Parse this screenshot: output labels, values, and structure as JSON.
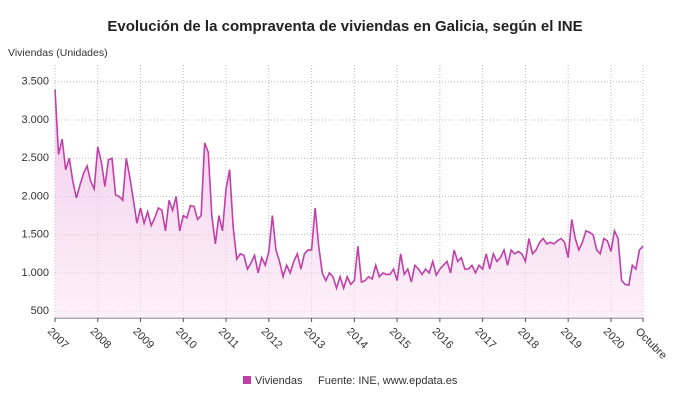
{
  "chart_data": {
    "type": "line",
    "title": "Evolución de la compraventa de viviendas en Galicia, según el INE",
    "y_label": "Viviendas (Unidades)",
    "source": "Fuente: INE, www.epdata.es",
    "categories": [
      "2007",
      null,
      null,
      null,
      null,
      null,
      null,
      null,
      null,
      null,
      null,
      null,
      "2008",
      null,
      null,
      null,
      null,
      null,
      null,
      null,
      null,
      null,
      null,
      null,
      "2009",
      null,
      null,
      null,
      null,
      null,
      null,
      null,
      null,
      null,
      null,
      null,
      "2010",
      null,
      null,
      null,
      null,
      null,
      null,
      null,
      null,
      null,
      null,
      null,
      "2011",
      null,
      null,
      null,
      null,
      null,
      null,
      null,
      null,
      null,
      null,
      null,
      "2012",
      null,
      null,
      null,
      null,
      null,
      null,
      null,
      null,
      null,
      null,
      null,
      "2013",
      null,
      null,
      null,
      null,
      null,
      null,
      null,
      null,
      null,
      null,
      null,
      "2014",
      null,
      null,
      null,
      null,
      null,
      null,
      null,
      null,
      null,
      null,
      null,
      "2015",
      null,
      null,
      null,
      null,
      null,
      null,
      null,
      null,
      null,
      null,
      null,
      "2016",
      null,
      null,
      null,
      null,
      null,
      null,
      null,
      null,
      null,
      null,
      null,
      "2017",
      null,
      null,
      null,
      null,
      null,
      null,
      null,
      null,
      null,
      null,
      null,
      "2018",
      null,
      null,
      null,
      null,
      null,
      null,
      null,
      null,
      null,
      null,
      null,
      "2019",
      null,
      null,
      null,
      null,
      null,
      null,
      null,
      null,
      null,
      null,
      null,
      "2020",
      null,
      null,
      null,
      null,
      null,
      null,
      null,
      null,
      "Octubre"
    ],
    "series": [
      {
        "name": "Viviendas",
        "color": "#c040a8",
        "values": [
          3400,
          2550,
          2750,
          2350,
          2500,
          2200,
          1980,
          2150,
          2300,
          2400,
          2200,
          2100,
          2650,
          2450,
          2130,
          2480,
          2500,
          2020,
          2000,
          1950,
          2500,
          2250,
          1950,
          1650,
          1850,
          1650,
          1800,
          1620,
          1720,
          1850,
          1820,
          1550,
          1950,
          1820,
          2000,
          1550,
          1750,
          1720,
          1880,
          1870,
          1700,
          1750,
          2700,
          2580,
          1750,
          1380,
          1750,
          1550,
          2100,
          2350,
          1600,
          1180,
          1250,
          1230,
          1050,
          1130,
          1230,
          1000,
          1200,
          1100,
          1280,
          1750,
          1300,
          1150,
          950,
          1100,
          1000,
          1150,
          1250,
          1050,
          1250,
          1300,
          1300,
          1850,
          1350,
          1000,
          900,
          1000,
          950,
          800,
          950,
          800,
          950,
          850,
          900,
          1350,
          880,
          900,
          950,
          920,
          1100,
          950,
          1000,
          980,
          980,
          1050,
          900,
          1250,
          980,
          1050,
          880,
          1100,
          1050,
          980,
          1050,
          1000,
          1150,
          970,
          1050,
          1100,
          1150,
          1000,
          1300,
          1150,
          1200,
          1050,
          1050,
          1100,
          1000,
          1100,
          1050,
          1250,
          1050,
          1250,
          1150,
          1200,
          1300,
          1100,
          1300,
          1250,
          1280,
          1250,
          1150,
          1450,
          1250,
          1300,
          1400,
          1450,
          1380,
          1400,
          1380,
          1420,
          1450,
          1400,
          1200,
          1700,
          1450,
          1300,
          1400,
          1550,
          1530,
          1500,
          1300,
          1250,
          1450,
          1420,
          1280,
          1550,
          1450,
          900,
          850,
          840,
          1100,
          1050,
          1300,
          1350
        ]
      }
    ],
    "ylim": [
      410,
      3720
    ],
    "yticks": [
      {
        "value": 500,
        "label": "500"
      },
      {
        "value": 1000,
        "label": "1.000"
      },
      {
        "value": 1500,
        "label": "1.500"
      },
      {
        "value": 2000,
        "label": "2.000"
      },
      {
        "value": 2500,
        "label": "2.500"
      },
      {
        "value": 3000,
        "label": "3.000"
      },
      {
        "value": 3500,
        "label": "3.500"
      }
    ],
    "grid": true
  }
}
